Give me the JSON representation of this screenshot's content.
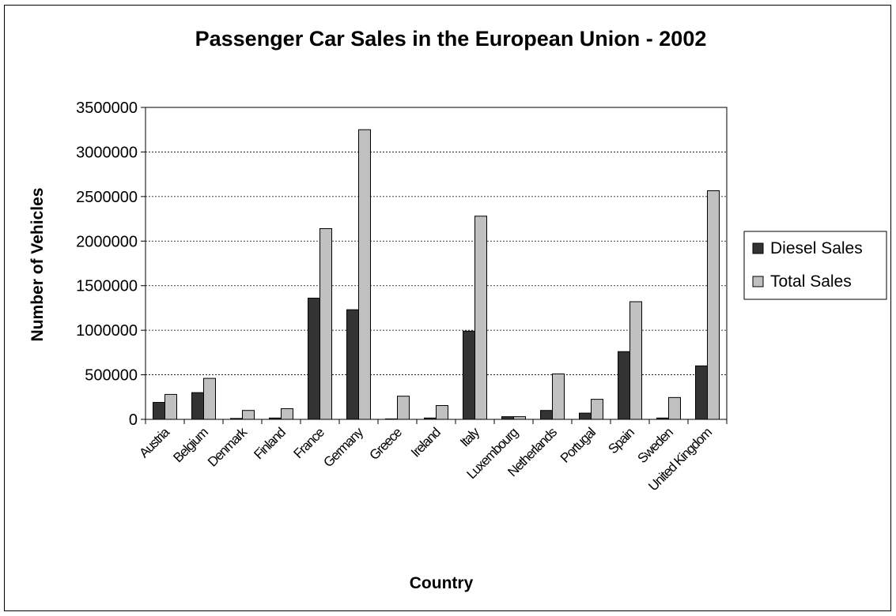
{
  "chart_data": {
    "type": "bar",
    "title": "Passenger Car Sales in the European Union - 2002",
    "xlabel": "Country",
    "ylabel": "Number of Vehicles",
    "ylim": [
      0,
      3500000
    ],
    "y_ticks": [
      "0",
      "500000",
      "1000000",
      "1500000",
      "2000000",
      "2500000",
      "3000000",
      "3500000"
    ],
    "y_tick_values": [
      0,
      500000,
      1000000,
      1500000,
      2000000,
      2500000,
      3000000,
      3500000
    ],
    "grid": true,
    "legend_position": "right",
    "categories": [
      "Austria",
      "Belgium",
      "Denmark",
      "Finland",
      "France",
      "Germany",
      "Greece",
      "Ireland",
      "Italy",
      "Luxembourg",
      "Netherlands",
      "Portugal",
      "Spain",
      "Sweden",
      "United Kingdom"
    ],
    "series": [
      {
        "name": "Diesel Sales",
        "color": "#333333",
        "values": [
          190000,
          300000,
          10000,
          15000,
          1360000,
          1230000,
          5000,
          15000,
          990000,
          30000,
          100000,
          70000,
          760000,
          15000,
          600000
        ]
      },
      {
        "name": "Total Sales",
        "color": "#c0c0c0",
        "values": [
          280000,
          460000,
          100000,
          120000,
          2140000,
          3250000,
          260000,
          155000,
          2280000,
          30000,
          510000,
          225000,
          1320000,
          245000,
          2565000
        ]
      }
    ]
  }
}
